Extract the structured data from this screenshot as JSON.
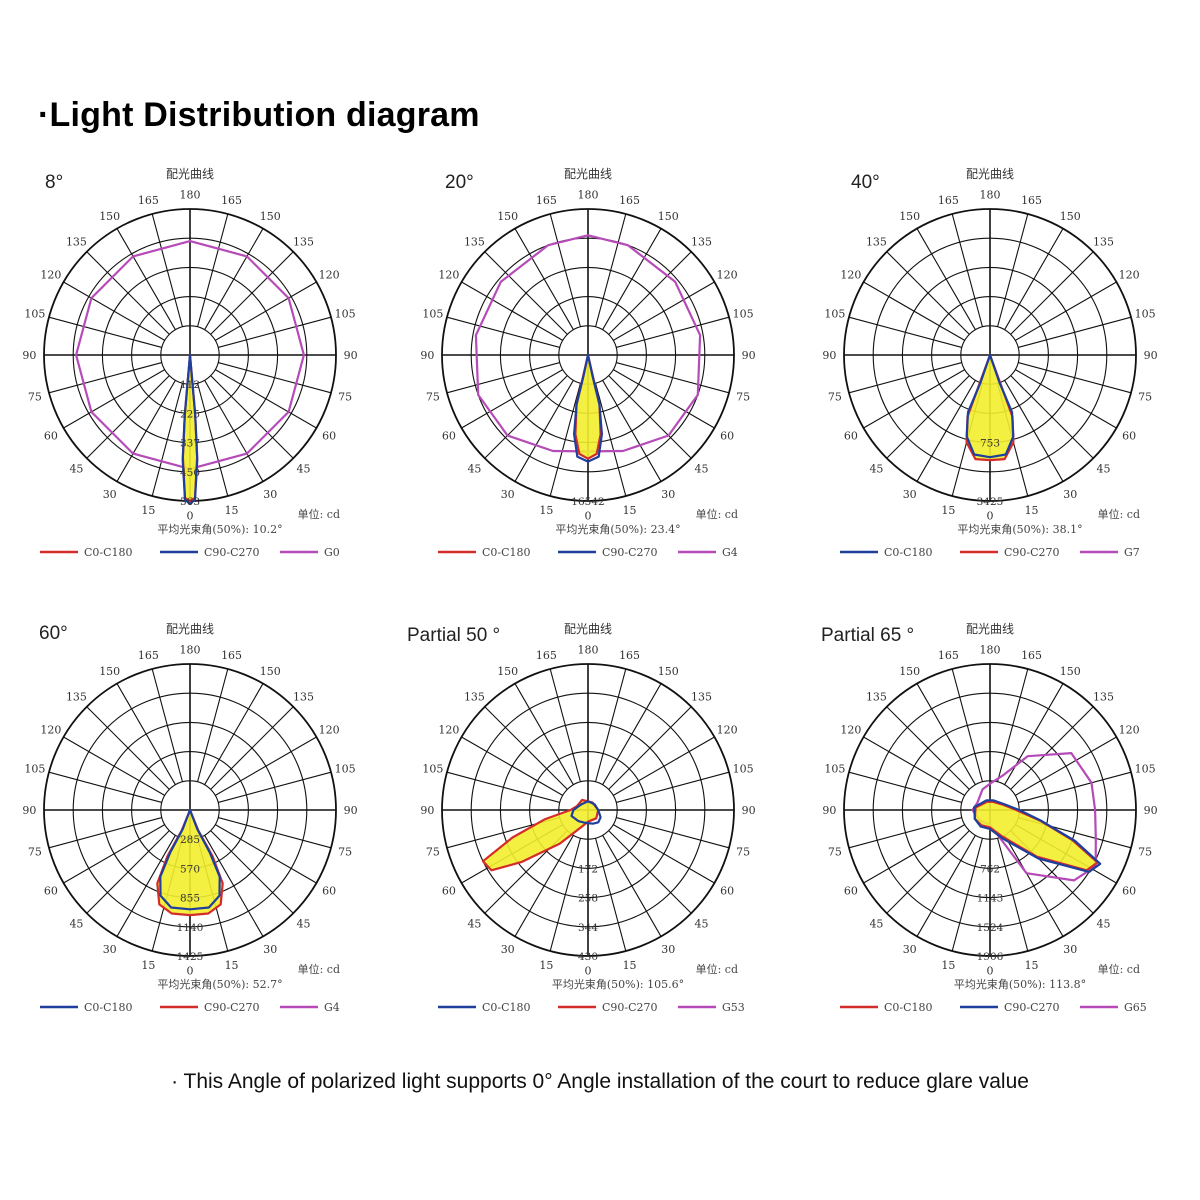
{
  "title": "·Light Distribution diagram",
  "footnote": "· This Angle of polarized light supports 0° Angle installation of the court to reduce glare value",
  "common": {
    "chart_heading": "配光曲线",
    "unit_label": "单位: cd",
    "angle_labels": [
      "180",
      "165",
      "150",
      "135",
      "120",
      "105",
      "90",
      "75",
      "60",
      "45",
      "30",
      "15",
      "0",
      "15",
      "30",
      "45",
      "60",
      "75",
      "90",
      "105",
      "120",
      "135",
      "150",
      "165"
    ]
  },
  "colors": {
    "red": "#d42b2b",
    "blue": "#1f3f9c",
    "magenta": "#b54ab8",
    "fill": "#f2ee2c",
    "grid": "#111111"
  },
  "diagrams": [
    {
      "id": "8",
      "label": "8°",
      "beam_angle": "平均光束角(50%): 10.2°",
      "radial_labels": [
        "112",
        "225",
        "337",
        "450",
        "563"
      ],
      "legend": [
        {
          "name": "C0-C180",
          "color": "red"
        },
        {
          "name": "C90-C270",
          "color": "blue"
        },
        {
          "name": "G0",
          "color": "magenta"
        }
      ],
      "curves": [
        {
          "color": "magenta",
          "fill": false,
          "points": [
            [
              0,
              0.78
            ],
            [
              30,
              0.78
            ],
            [
              60,
              0.78
            ],
            [
              90,
              0.78
            ],
            [
              120,
              0.78
            ],
            [
              150,
              0.78
            ],
            [
              180,
              0.78
            ],
            [
              210,
              0.78
            ],
            [
              240,
              0.78
            ],
            [
              270,
              0.78
            ],
            [
              300,
              0.78
            ],
            [
              330,
              0.78
            ]
          ]
        },
        {
          "color": "red",
          "fill": true,
          "points": [
            [
              0,
              1.0
            ],
            [
              2,
              0.98
            ],
            [
              4,
              0.7
            ],
            [
              5,
              0.4
            ],
            [
              5,
              0.15
            ],
            [
              0,
              0
            ],
            [
              -5,
              0.15
            ],
            [
              -5,
              0.4
            ],
            [
              -4,
              0.7
            ],
            [
              -2,
              0.98
            ]
          ]
        },
        {
          "color": "blue",
          "fill": false,
          "points": [
            [
              0,
              1.02
            ],
            [
              2,
              0.99
            ],
            [
              4,
              0.72
            ],
            [
              5,
              0.42
            ],
            [
              5,
              0.18
            ],
            [
              0,
              0
            ],
            [
              -5,
              0.18
            ],
            [
              -5,
              0.42
            ],
            [
              -4,
              0.72
            ],
            [
              -2,
              0.99
            ]
          ]
        }
      ]
    },
    {
      "id": "20",
      "label": "20°",
      "beam_angle": "平均光束角(50%): 23.4°",
      "radial_labels": [
        "",
        "",
        "",
        "",
        "16542"
      ],
      "legend": [
        {
          "name": "C0-C180",
          "color": "red"
        },
        {
          "name": "C90-C270",
          "color": "blue"
        },
        {
          "name": "G4",
          "color": "magenta"
        }
      ],
      "curves": [
        {
          "color": "magenta",
          "fill": false,
          "points": [
            [
              0,
              0.66
            ],
            [
              20,
              0.7
            ],
            [
              45,
              0.78
            ],
            [
              70,
              0.8
            ],
            [
              100,
              0.78
            ],
            [
              130,
              0.78
            ],
            [
              160,
              0.8
            ],
            [
              180,
              0.82
            ],
            [
              200,
              0.8
            ],
            [
              230,
              0.78
            ],
            [
              260,
              0.78
            ],
            [
              290,
              0.8
            ],
            [
              315,
              0.78
            ],
            [
              340,
              0.7
            ]
          ]
        },
        {
          "color": "red",
          "fill": true,
          "points": [
            [
              0,
              0.71
            ],
            [
              5,
              0.68
            ],
            [
              9,
              0.55
            ],
            [
              13,
              0.35
            ],
            [
              13,
              0.15
            ],
            [
              0,
              0
            ],
            [
              -13,
              0.15
            ],
            [
              -13,
              0.35
            ],
            [
              -9,
              0.55
            ],
            [
              -5,
              0.68
            ]
          ]
        },
        {
          "color": "blue",
          "fill": false,
          "points": [
            [
              0,
              0.73
            ],
            [
              6,
              0.7
            ],
            [
              10,
              0.55
            ],
            [
              13,
              0.35
            ],
            [
              12,
              0.15
            ],
            [
              0,
              0
            ],
            [
              -12,
              0.15
            ],
            [
              -13,
              0.35
            ],
            [
              -10,
              0.55
            ],
            [
              -6,
              0.7
            ]
          ]
        }
      ]
    },
    {
      "id": "40",
      "label": "40°",
      "beam_angle": "平均光束角(50%): 38.1°",
      "radial_labels": [
        "",
        "",
        "753",
        "",
        "3425"
      ],
      "legend": [
        {
          "name": "C0-C180",
          "color": "blue"
        },
        {
          "name": "C90-C270",
          "color": "red"
        },
        {
          "name": "G7",
          "color": "magenta"
        }
      ],
      "curves": [
        {
          "color": "red",
          "fill": true,
          "points": [
            [
              0,
              0.72
            ],
            [
              8,
              0.72
            ],
            [
              15,
              0.62
            ],
            [
              20,
              0.45
            ],
            [
              20,
              0.2
            ],
            [
              0,
              0
            ],
            [
              -20,
              0.2
            ],
            [
              -20,
              0.45
            ],
            [
              -15,
              0.62
            ],
            [
              -8,
              0.72
            ]
          ]
        },
        {
          "color": "blue",
          "fill": false,
          "points": [
            [
              0,
              0.7
            ],
            [
              9,
              0.69
            ],
            [
              16,
              0.58
            ],
            [
              21,
              0.42
            ],
            [
              19,
              0.2
            ],
            [
              0,
              0
            ],
            [
              -19,
              0.2
            ],
            [
              -21,
              0.42
            ],
            [
              -16,
              0.58
            ],
            [
              -9,
              0.69
            ]
          ]
        }
      ]
    },
    {
      "id": "60",
      "label": "60°",
      "beam_angle": "平均光束角(50%): 52.7°",
      "radial_labels": [
        "285",
        "570",
        "855",
        "1140",
        "1425"
      ],
      "legend": [
        {
          "name": "C0-C180",
          "color": "blue"
        },
        {
          "name": "C90-C270",
          "color": "red"
        },
        {
          "name": "G4",
          "color": "magenta"
        }
      ],
      "curves": [
        {
          "color": "red",
          "fill": true,
          "points": [
            [
              0,
              0.72
            ],
            [
              10,
              0.72
            ],
            [
              18,
              0.68
            ],
            [
              24,
              0.55
            ],
            [
              26,
              0.35
            ],
            [
              22,
              0.15
            ],
            [
              0,
              0
            ],
            [
              -22,
              0.15
            ],
            [
              -26,
              0.35
            ],
            [
              -24,
              0.55
            ],
            [
              -18,
              0.68
            ],
            [
              -10,
              0.72
            ]
          ]
        },
        {
          "color": "blue",
          "fill": false,
          "points": [
            [
              0,
              0.68
            ],
            [
              11,
              0.68
            ],
            [
              19,
              0.62
            ],
            [
              24,
              0.5
            ],
            [
              25,
              0.32
            ],
            [
              21,
              0.14
            ],
            [
              0,
              0
            ],
            [
              -21,
              0.14
            ],
            [
              -25,
              0.32
            ],
            [
              -24,
              0.5
            ],
            [
              -19,
              0.62
            ],
            [
              -11,
              0.68
            ]
          ]
        }
      ]
    },
    {
      "id": "p50",
      "label": "Partial 50 °",
      "beam_angle": "平均光束角(50%): 105.6°",
      "radial_labels": [
        "",
        "172",
        "258",
        "344",
        "430"
      ],
      "legend": [
        {
          "name": "C0-C180",
          "color": "blue"
        },
        {
          "name": "C90-C270",
          "color": "red"
        },
        {
          "name": "G53",
          "color": "magenta"
        }
      ],
      "curves": [
        {
          "color": "red",
          "fill": true,
          "points": [
            [
              0,
              0.08
            ],
            [
              -20,
              0.12
            ],
            [
              -40,
              0.3
            ],
            [
              -52,
              0.58
            ],
            [
              -58,
              0.78
            ],
            [
              -64,
              0.8
            ],
            [
              -70,
              0.55
            ],
            [
              -78,
              0.3
            ],
            [
              -90,
              0.12
            ],
            [
              -110,
              0.08
            ],
            [
              -150,
              0.08
            ],
            [
              150,
              0.06
            ],
            [
              90,
              0.07
            ],
            [
              45,
              0.08
            ]
          ]
        },
        {
          "color": "blue",
          "fill": false,
          "points": [
            [
              0,
              0.09
            ],
            [
              20,
              0.1
            ],
            [
              40,
              0.11
            ],
            [
              60,
              0.1
            ],
            [
              90,
              0.07
            ],
            [
              130,
              0.06
            ],
            [
              180,
              0.06
            ],
            [
              -130,
              0.06
            ],
            [
              -90,
              0.1
            ],
            [
              -70,
              0.12
            ],
            [
              -40,
              0.1
            ],
            [
              -15,
              0.09
            ]
          ]
        }
      ]
    },
    {
      "id": "p65",
      "label": "Partial 65 °",
      "beam_angle": "平均光束角(50%): 113.8°",
      "radial_labels": [
        "",
        "762",
        "1143",
        "1524",
        "1906"
      ],
      "legend": [
        {
          "name": "C0-C180",
          "color": "red"
        },
        {
          "name": "C90-C270",
          "color": "blue"
        },
        {
          "name": "G65",
          "color": "magenta"
        }
      ],
      "curves": [
        {
          "color": "magenta",
          "fill": false,
          "points": [
            [
              0,
              0.1
            ],
            [
              30,
              0.5
            ],
            [
              50,
              0.75
            ],
            [
              62,
              0.82
            ],
            [
              75,
              0.75
            ],
            [
              90,
              0.72
            ],
            [
              105,
              0.72
            ],
            [
              125,
              0.68
            ],
            [
              145,
              0.45
            ],
            [
              160,
              0.25
            ],
            [
              180,
              0.18
            ],
            [
              -160,
              0.15
            ],
            [
              -120,
              0.1
            ],
            [
              -90,
              0.12
            ],
            [
              -45,
              0.1
            ]
          ]
        },
        {
          "color": "red",
          "fill": true,
          "points": [
            [
              0,
              0.12
            ],
            [
              25,
              0.2
            ],
            [
              45,
              0.45
            ],
            [
              58,
              0.78
            ],
            [
              64,
              0.82
            ],
            [
              70,
              0.6
            ],
            [
              78,
              0.35
            ],
            [
              90,
              0.18
            ],
            [
              110,
              0.1
            ],
            [
              160,
              0.06
            ],
            [
              -160,
              0.06
            ],
            [
              -100,
              0.1
            ],
            [
              -60,
              0.12
            ],
            [
              -30,
              0.12
            ]
          ]
        },
        {
          "color": "blue",
          "fill": false,
          "points": [
            [
              0,
              0.13
            ],
            [
              25,
              0.22
            ],
            [
              45,
              0.47
            ],
            [
              58,
              0.8
            ],
            [
              64,
              0.84
            ],
            [
              70,
              0.62
            ],
            [
              78,
              0.36
            ],
            [
              90,
              0.2
            ],
            [
              110,
              0.11
            ],
            [
              160,
              0.07
            ],
            [
              -160,
              0.07
            ],
            [
              -100,
              0.11
            ],
            [
              -60,
              0.12
            ],
            [
              -30,
              0.13
            ]
          ]
        }
      ]
    }
  ]
}
